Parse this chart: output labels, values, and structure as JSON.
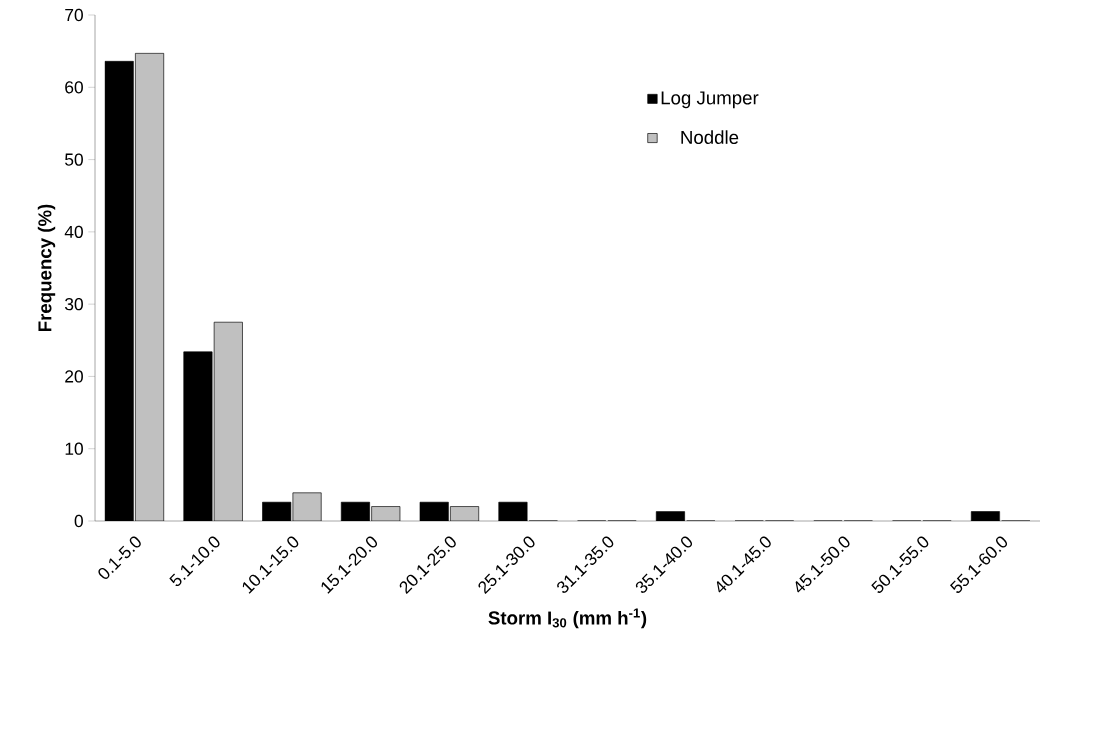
{
  "chart_data": {
    "type": "bar",
    "xlabel": "**Storm I$_{30}$ (mm h$^{-1}$)**",
    "ylabel": "Frequency (%)",
    "categories": [
      "0.1-5.0",
      "5.1-10.0",
      "10.1-15.0",
      "15.1-20.0",
      "20.1-25.0",
      "25.1-30.0",
      "31.1-35.0",
      "35.1-40.0",
      "40.1-45.0",
      "45.1-50.0",
      "50.1-55.0",
      "55.1-60.0"
    ],
    "series": [
      {
        "name": "Log Jumper",
        "color": "#000000",
        "values": [
          63.6,
          23.4,
          2.6,
          2.6,
          2.6,
          2.6,
          0,
          1.3,
          0,
          0,
          0,
          1.3
        ]
      },
      {
        "name": "Noddle",
        "color": "#c0c0c0",
        "values": [
          64.7,
          27.5,
          3.9,
          2.0,
          2.0,
          0,
          0,
          0,
          0,
          0,
          0,
          0
        ]
      }
    ],
    "ylim": [
      0,
      70
    ],
    "yticks": [
      0,
      10,
      20,
      30,
      40,
      50,
      60,
      70
    ],
    "legend": "top right",
    "grid": false
  }
}
